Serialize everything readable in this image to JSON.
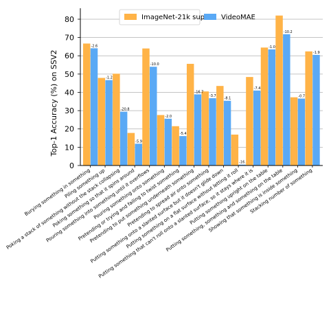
{
  "chart_data": {
    "type": "bar",
    "ylabel": "Top-1 Accuracy (%) on SSV2",
    "xlabel": "",
    "title": "",
    "ylim": [
      0,
      86
    ],
    "yticks": [
      0,
      10,
      20,
      30,
      40,
      50,
      60,
      70,
      80
    ],
    "grid": "horizontal",
    "legend_placement": "top",
    "categories": [
      "Burying something in something",
      "Piling something up",
      "Poking a stack of something without the stack collapsing",
      "Poking something so that it spins around",
      "Pouring something into something until it overflows",
      "Pouring something onto something",
      "Pretending or trying and failing to twist something",
      "Pretending to put something underneath something",
      "Pretending to spread air onto something",
      "Putting something onto a slanted surface but it doesn't glide down",
      "Putting something on a flat surface without letting it roll",
      "Putting something that can't roll onto a slanted surface, so it stays where it is",
      "Putting something upright on the table",
      "Putting something, something and something on the table",
      "Showing that something is inside something",
      "Stacking number of something"
    ],
    "series": [
      {
        "name": "ImageNet-21k sup.",
        "color": "#FFB347",
        "values": [
          66.7,
          47.9,
          50.2,
          17.8,
          64.0,
          27.6,
          21.5,
          55.6,
          40.5,
          43.5,
          16.9,
          48.4,
          64.5,
          82.0,
          37.3,
          62.4
        ]
      },
      {
        "name": "VideoMAE",
        "color": "#5AA9F5",
        "values": [
          64.1,
          46.7,
          29.4,
          11.9,
          54.0,
          25.6,
          16.1,
          38.9,
          36.8,
          35.4,
          0.5,
          41.0,
          63.5,
          71.8,
          36.6,
          60.5
        ]
      }
    ],
    "delta_labels": [
      "-2.6",
      "-1.2",
      "-20.8",
      "-5.9",
      "-10.0",
      "-2.0",
      "-5.4",
      "-16.7",
      "-3.7",
      "-8.1",
      "-16.",
      "-7.4",
      "-1.0",
      "-10.2",
      "-0.7",
      "-1.9"
    ]
  }
}
